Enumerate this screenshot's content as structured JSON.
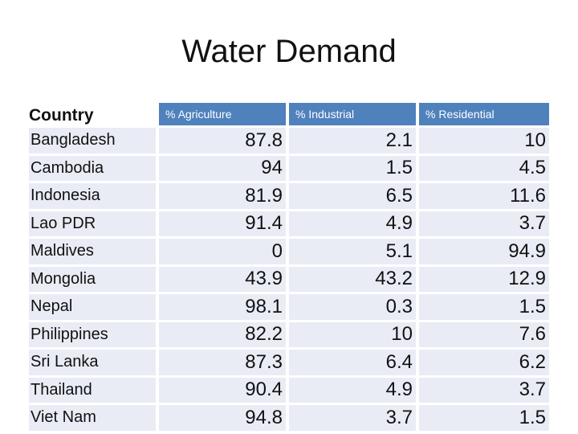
{
  "title": "Water Demand",
  "table": {
    "headers": [
      "Country",
      "% Agriculture",
      "% Industrial",
      "% Residential"
    ],
    "rows": [
      {
        "country": "Bangladesh",
        "agriculture": "87.8",
        "industrial": "2.1",
        "residential": "10"
      },
      {
        "country": "Cambodia",
        "agriculture": "94",
        "industrial": "1.5",
        "residential": "4.5"
      },
      {
        "country": "Indonesia",
        "agriculture": "81.9",
        "industrial": "6.5",
        "residential": "11.6"
      },
      {
        "country": "Lao PDR",
        "agriculture": "91.4",
        "industrial": "4.9",
        "residential": "3.7"
      },
      {
        "country": "Maldives",
        "agriculture": "0",
        "industrial": "5.1",
        "residential": "94.9"
      },
      {
        "country": "Mongolia",
        "agriculture": "43.9",
        "industrial": "43.2",
        "residential": "12.9"
      },
      {
        "country": "Nepal",
        "agriculture": "98.1",
        "industrial": "0.3",
        "residential": "1.5"
      },
      {
        "country": "Philippines",
        "agriculture": "82.2",
        "industrial": "10",
        "residential": "7.6"
      },
      {
        "country": "Sri Lanka",
        "agriculture": "87.3",
        "industrial": "6.4",
        "residential": "6.2"
      },
      {
        "country": "Thailand",
        "agriculture": "90.4",
        "industrial": "4.9",
        "residential": "3.7"
      },
      {
        "country": "Viet Nam",
        "agriculture": "94.8",
        "industrial": "3.7",
        "residential": "1.5"
      }
    ]
  },
  "colors": {
    "header_fill": "#4f81bd",
    "row_fill": "#e9ecf5"
  }
}
